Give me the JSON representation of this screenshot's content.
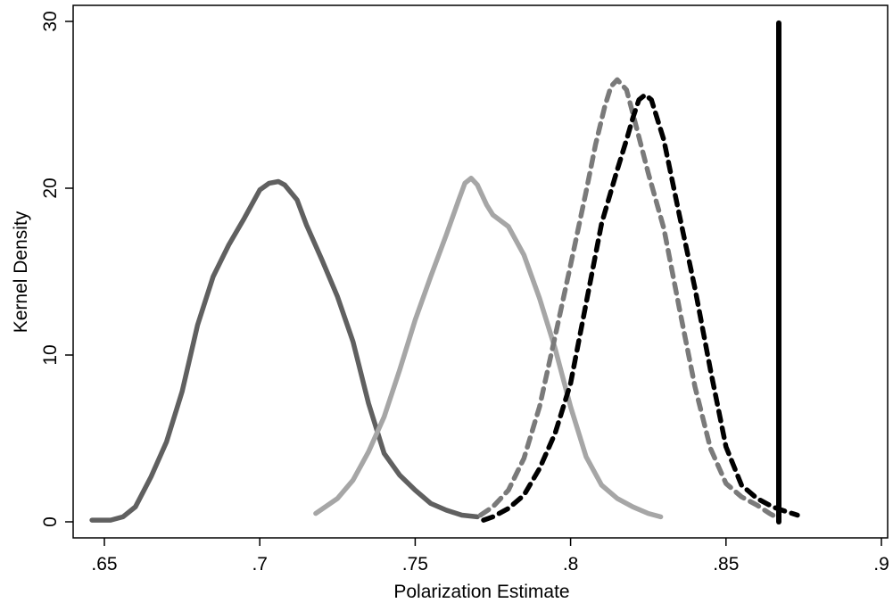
{
  "chart_data": {
    "type": "line",
    "title": "",
    "xlabel": "Polarization Estimate",
    "ylabel": "Kernel Density",
    "xlim": [
      0.645,
      0.905
    ],
    "ylim": [
      0,
      30
    ],
    "x_ticks": [
      0.65,
      0.7,
      0.75,
      0.8,
      0.85,
      0.9
    ],
    "x_tick_labels": [
      ".65",
      ".7",
      ".75",
      ".8",
      ".85",
      ".9"
    ],
    "y_ticks": [
      0,
      10,
      20,
      30
    ],
    "y_tick_labels": [
      "0",
      "10",
      "20",
      "30"
    ],
    "grid": false,
    "legend": "none",
    "series": [
      {
        "color": "#606060",
        "style": "solid",
        "x": [
          0.646,
          0.652,
          0.656,
          0.66,
          0.665,
          0.67,
          0.675,
          0.68,
          0.685,
          0.69,
          0.695,
          0.7,
          0.703,
          0.706,
          0.708,
          0.712,
          0.715,
          0.72,
          0.725,
          0.73,
          0.735,
          0.74,
          0.745,
          0.75,
          0.755,
          0.76,
          0.765,
          0.77
        ],
        "y": [
          0.1,
          0.1,
          0.3,
          0.9,
          2.7,
          4.8,
          7.8,
          11.8,
          14.7,
          16.6,
          18.2,
          19.9,
          20.3,
          20.4,
          20.2,
          19.3,
          17.8,
          15.7,
          13.5,
          10.8,
          7.1,
          4.1,
          2.8,
          1.9,
          1.1,
          0.7,
          0.4,
          0.3
        ]
      },
      {
        "color": "#a6a6a6",
        "style": "solid",
        "x": [
          0.718,
          0.725,
          0.73,
          0.735,
          0.74,
          0.745,
          0.75,
          0.755,
          0.76,
          0.764,
          0.766,
          0.768,
          0.77,
          0.773,
          0.775,
          0.78,
          0.785,
          0.79,
          0.795,
          0.8,
          0.805,
          0.81,
          0.815,
          0.82,
          0.825,
          0.829
        ],
        "y": [
          0.5,
          1.4,
          2.5,
          4.2,
          6.3,
          9.1,
          12.1,
          14.7,
          17.2,
          19.3,
          20.3,
          20.6,
          20.2,
          19.0,
          18.4,
          17.7,
          16.0,
          13.4,
          10.4,
          6.9,
          3.9,
          2.2,
          1.4,
          0.9,
          0.5,
          0.3
        ]
      },
      {
        "color": "#7a7a7a",
        "style": "dashed",
        "x": [
          0.771,
          0.775,
          0.78,
          0.785,
          0.79,
          0.795,
          0.8,
          0.805,
          0.808,
          0.811,
          0.813,
          0.815,
          0.818,
          0.82,
          0.825,
          0.83,
          0.835,
          0.84,
          0.845,
          0.85,
          0.855,
          0.86,
          0.864,
          0.867
        ],
        "y": [
          0.4,
          0.9,
          1.9,
          3.8,
          6.9,
          11.1,
          15.4,
          19.8,
          22.6,
          24.9,
          26.1,
          26.5,
          25.9,
          24.5,
          20.9,
          17.6,
          12.8,
          8.1,
          4.4,
          2.3,
          1.5,
          1.0,
          0.5,
          0.2
        ]
      },
      {
        "color": "#000000",
        "style": "dashed",
        "x": [
          0.772,
          0.775,
          0.78,
          0.785,
          0.79,
          0.795,
          0.8,
          0.805,
          0.81,
          0.815,
          0.818,
          0.82,
          0.822,
          0.824,
          0.826,
          0.83,
          0.835,
          0.84,
          0.845,
          0.85,
          0.855,
          0.86,
          0.865,
          0.868,
          0.873
        ],
        "y": [
          0.1,
          0.3,
          0.8,
          1.6,
          3.2,
          5.3,
          8.3,
          13.1,
          17.9,
          21.1,
          22.9,
          24.2,
          25.3,
          25.6,
          25.3,
          22.9,
          18.4,
          14.0,
          9.1,
          4.5,
          2.2,
          1.4,
          0.9,
          0.7,
          0.4
        ]
      },
      {
        "color": "#000000",
        "style": "solid",
        "x": [
          0.867,
          0.867
        ],
        "y": [
          0,
          29.9
        ]
      }
    ]
  }
}
